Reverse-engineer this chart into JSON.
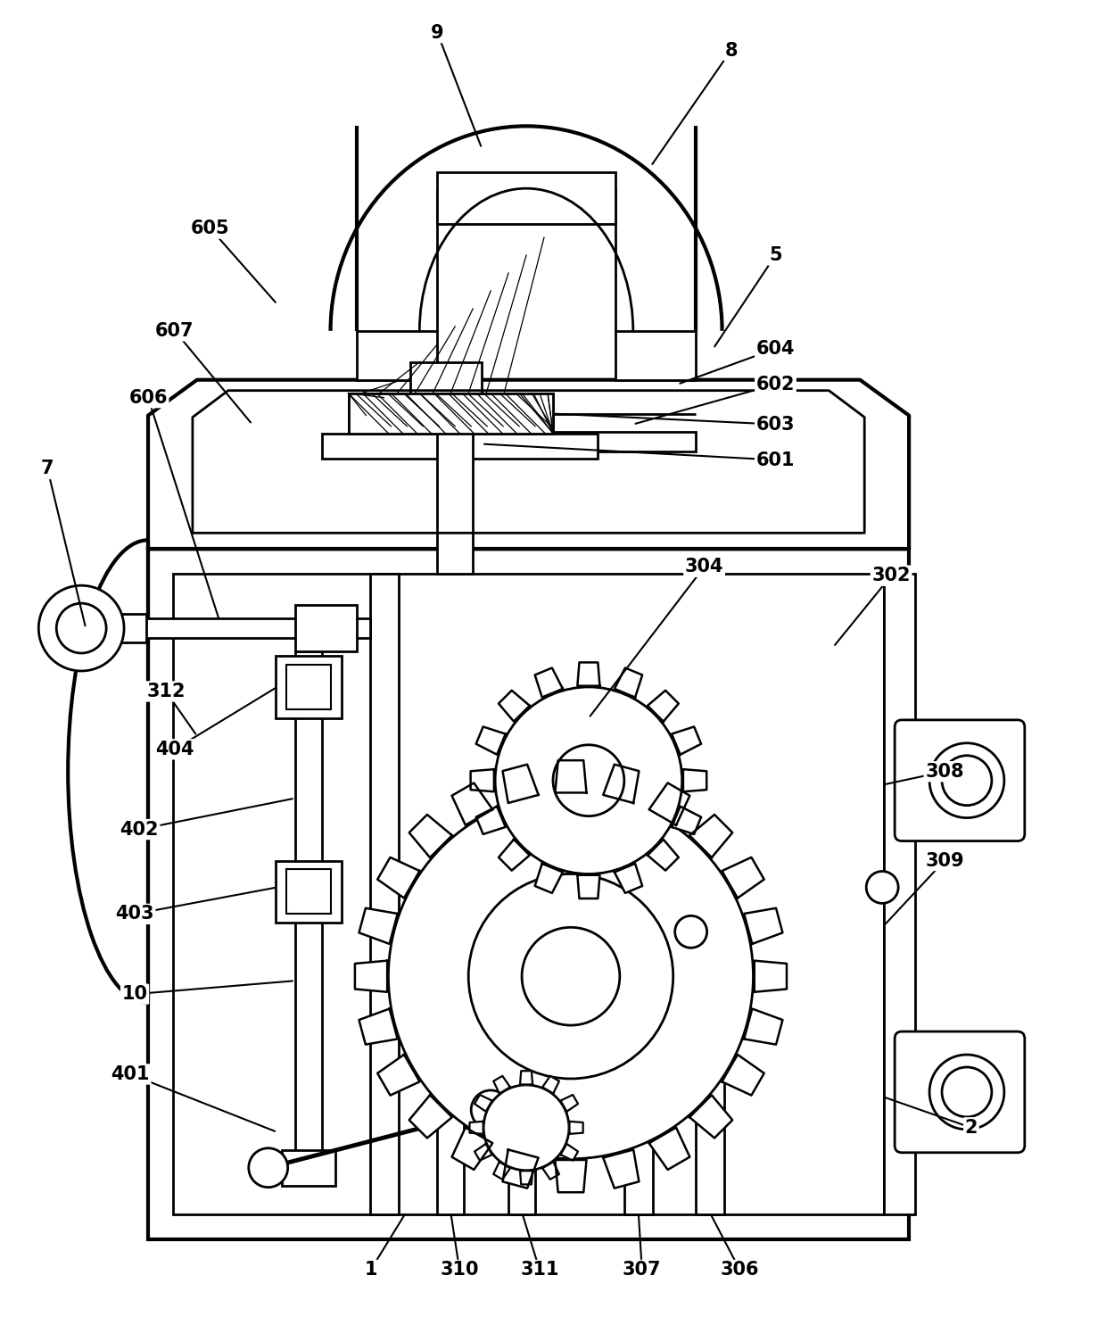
{
  "bg_color": "#ffffff",
  "lc": "#000000",
  "lw": 2.0,
  "fig_w": 12.4,
  "fig_h": 14.85,
  "dpi": 100
}
